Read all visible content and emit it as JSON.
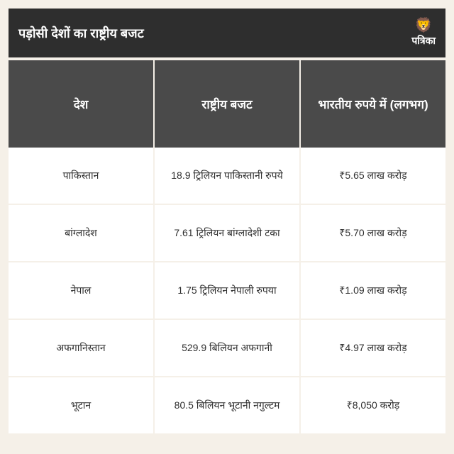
{
  "header": {
    "title": "पड़ोसी देशों का राष्ट्रीय बजट",
    "logo_text": "पत्रिका"
  },
  "table": {
    "columns": [
      "देश",
      "राष्ट्रीय बजट",
      "भारतीय रुपये में (लगभग)"
    ],
    "rows": [
      [
        "पाकिस्तान",
        "18.9 ट्रिलियन पाकिस्तानी रुपये",
        "₹5.65 लाख करोड़"
      ],
      [
        "बांग्लादेश",
        "7.61 ट्रिलियन बांग्लादेशी टका",
        "₹5.70 लाख करोड़"
      ],
      [
        "नेपाल",
        "1.75 ट्रिलियन नेपाली रुपया",
        "₹1.09 लाख करोड़"
      ],
      [
        "अफगानिस्तान",
        "529.9 बिलियन अफगानी",
        "₹4.97 लाख करोड़"
      ],
      [
        "भूटान",
        "80.5 बिलियन भूटानी नगुल्टम",
        "₹8,050 करोड़"
      ]
    ]
  },
  "styling": {
    "background_color": "#f5f0e8",
    "header_bg": "#2e2e2e",
    "table_header_bg": "#4a4a4a",
    "row_bg": "#ffffff",
    "text_color": "#2e2e2e",
    "header_text_color": "#ffffff",
    "logo_color": "#d4af37",
    "title_fontsize": 18,
    "column_header_fontsize": 17,
    "cell_fontsize": 14
  }
}
